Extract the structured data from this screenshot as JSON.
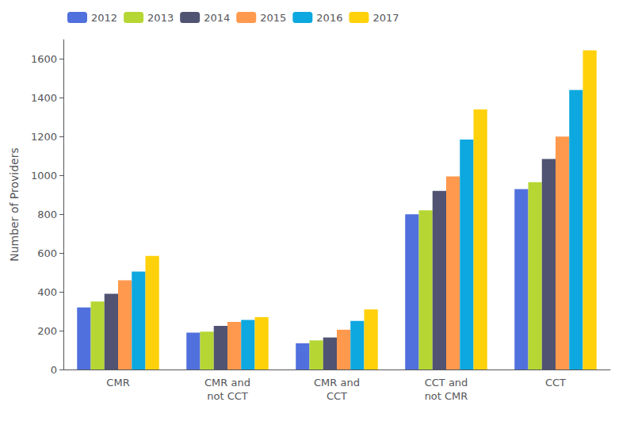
{
  "chart_data": {
    "type": "bar",
    "categories": [
      "CMR",
      "CMR and\nnot CCT",
      "CMR and\nCCT",
      "CCT and\nnot CMR",
      "CCT"
    ],
    "series": [
      {
        "name": "2012",
        "values": [
          320,
          190,
          135,
          800,
          930
        ]
      },
      {
        "name": "2013",
        "values": [
          350,
          195,
          150,
          820,
          965
        ]
      },
      {
        "name": "2014",
        "values": [
          390,
          225,
          165,
          920,
          1085
        ]
      },
      {
        "name": "2015",
        "values": [
          460,
          245,
          205,
          995,
          1200
        ]
      },
      {
        "name": "2016",
        "values": [
          505,
          255,
          250,
          1185,
          1440
        ]
      },
      {
        "name": "2017",
        "values": [
          585,
          270,
          310,
          1340,
          1645
        ]
      }
    ],
    "ylabel": "Number of Providers",
    "ylim": [
      0,
      1700
    ],
    "yticks": [
      0,
      200,
      400,
      600,
      800,
      1000,
      1200,
      1400,
      1600
    ],
    "legend": "upper left",
    "grid": false
  }
}
